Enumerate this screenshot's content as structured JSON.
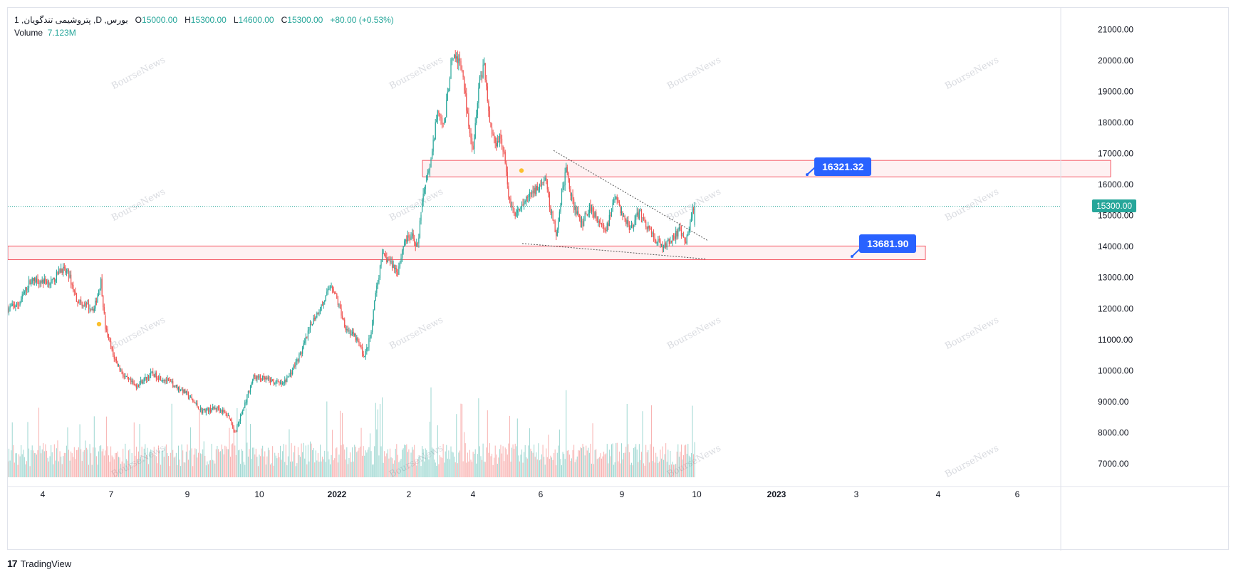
{
  "header": {
    "symbol": "1 ,پتروشیمی تندگویان ,D ,بورس",
    "open_label": "O",
    "open": "15000.00",
    "high_label": "H",
    "high": "15300.00",
    "low_label": "L",
    "low": "14600.00",
    "close_label": "C",
    "close": "15300.00",
    "change": "+80.00 (+0.53%)",
    "volume_label": "Volume",
    "volume": "7.123M"
  },
  "colors": {
    "up": "#26a69a",
    "down": "#ef5350",
    "zone": "#f23645",
    "callout": "#2962ff",
    "marker": "#fbc02d"
  },
  "price_axis_ticks": [
    "21000.00",
    "20000.00",
    "19000.00",
    "18000.00",
    "17000.00",
    "16000.00",
    "15000.00",
    "14000.00",
    "13000.00",
    "12000.00",
    "11000.00",
    "10000.00",
    "9000.00",
    "8000.00",
    "7000.00"
  ],
  "last_price_label": "15300.00",
  "time_axis_ticks": [
    "4",
    "7",
    "9",
    "10",
    "2022",
    "2",
    "4",
    "6",
    "9",
    "10",
    "2023",
    "3",
    "4",
    "6"
  ],
  "annotations": {
    "upper_level": "16321.32",
    "lower_level": "13681.90"
  },
  "watermark_text": "BourseNews",
  "footer": {
    "brand": "TradingView"
  },
  "chart_data": {
    "type": "candlestick",
    "title": "",
    "ylim": [
      6700,
      21400
    ],
    "grid": false,
    "last_close": 15300,
    "resistance_zone": [
      16250,
      16780
    ],
    "support_zone": [
      13580,
      14020
    ],
    "anchors": [
      {
        "d": 0,
        "p": 12000
      },
      {
        "d": 10,
        "p": 12150
      },
      {
        "d": 20,
        "p": 12900
      },
      {
        "d": 30,
        "p": 12900
      },
      {
        "d": 40,
        "p": 12850
      },
      {
        "d": 48,
        "p": 13300
      },
      {
        "d": 55,
        "p": 13100
      },
      {
        "d": 62,
        "p": 12300
      },
      {
        "d": 70,
        "p": 12100
      },
      {
        "d": 78,
        "p": 12000
      },
      {
        "d": 84,
        "p": 12900
      },
      {
        "d": 88,
        "p": 11400
      },
      {
        "d": 95,
        "p": 10500
      },
      {
        "d": 105,
        "p": 9800
      },
      {
        "d": 115,
        "p": 9500
      },
      {
        "d": 130,
        "p": 9900
      },
      {
        "d": 145,
        "p": 9650
      },
      {
        "d": 160,
        "p": 9300
      },
      {
        "d": 175,
        "p": 8700
      },
      {
        "d": 190,
        "p": 8800
      },
      {
        "d": 200,
        "p": 8500
      },
      {
        "d": 205,
        "p": 8000
      },
      {
        "d": 212,
        "p": 8700
      },
      {
        "d": 218,
        "p": 9400
      },
      {
        "d": 222,
        "p": 9800
      },
      {
        "d": 235,
        "p": 9700
      },
      {
        "d": 248,
        "p": 9550
      },
      {
        "d": 255,
        "p": 9900
      },
      {
        "d": 265,
        "p": 10600
      },
      {
        "d": 275,
        "p": 11600
      },
      {
        "d": 285,
        "p": 12200
      },
      {
        "d": 292,
        "p": 12800
      },
      {
        "d": 296,
        "p": 12400
      },
      {
        "d": 305,
        "p": 11400
      },
      {
        "d": 315,
        "p": 11000
      },
      {
        "d": 322,
        "p": 10450
      },
      {
        "d": 328,
        "p": 11200
      },
      {
        "d": 332,
        "p": 12500
      },
      {
        "d": 338,
        "p": 13700
      },
      {
        "d": 345,
        "p": 13500
      },
      {
        "d": 352,
        "p": 13200
      },
      {
        "d": 358,
        "p": 14200
      },
      {
        "d": 365,
        "p": 14300
      },
      {
        "d": 370,
        "p": 14000
      },
      {
        "d": 374,
        "p": 15500
      },
      {
        "d": 378,
        "p": 16300
      },
      {
        "d": 382,
        "p": 16700
      },
      {
        "d": 388,
        "p": 18500
      },
      {
        "d": 394,
        "p": 17900
      },
      {
        "d": 400,
        "p": 19900
      },
      {
        "d": 405,
        "p": 20100
      },
      {
        "d": 410,
        "p": 19700
      },
      {
        "d": 415,
        "p": 18200
      },
      {
        "d": 420,
        "p": 17200
      },
      {
        "d": 425,
        "p": 19200
      },
      {
        "d": 430,
        "p": 19900
      },
      {
        "d": 435,
        "p": 18000
      },
      {
        "d": 440,
        "p": 17300
      },
      {
        "d": 444,
        "p": 17600
      },
      {
        "d": 448,
        "p": 17000
      },
      {
        "d": 452,
        "p": 15600
      },
      {
        "d": 458,
        "p": 15000
      },
      {
        "d": 465,
        "p": 15300
      },
      {
        "d": 470,
        "p": 15600
      },
      {
        "d": 478,
        "p": 15900
      },
      {
        "d": 485,
        "p": 16200
      },
      {
        "d": 490,
        "p": 15200
      },
      {
        "d": 495,
        "p": 14400
      },
      {
        "d": 500,
        "p": 15700
      },
      {
        "d": 504,
        "p": 16500
      },
      {
        "d": 510,
        "p": 15400
      },
      {
        "d": 518,
        "p": 14700
      },
      {
        "d": 525,
        "p": 15300
      },
      {
        "d": 532,
        "p": 14900
      },
      {
        "d": 540,
        "p": 14500
      },
      {
        "d": 548,
        "p": 15600
      },
      {
        "d": 555,
        "p": 15000
      },
      {
        "d": 562,
        "p": 14600
      },
      {
        "d": 570,
        "p": 15100
      },
      {
        "d": 578,
        "p": 14600
      },
      {
        "d": 585,
        "p": 14200
      },
      {
        "d": 592,
        "p": 14000
      },
      {
        "d": 600,
        "p": 14300
      },
      {
        "d": 606,
        "p": 14500
      },
      {
        "d": 612,
        "p": 14100
      },
      {
        "d": 615,
        "p": 14600
      },
      {
        "d": 618,
        "p": 15200
      },
      {
        "d": 620,
        "p": 15300
      }
    ],
    "volume_unit": "shares"
  }
}
